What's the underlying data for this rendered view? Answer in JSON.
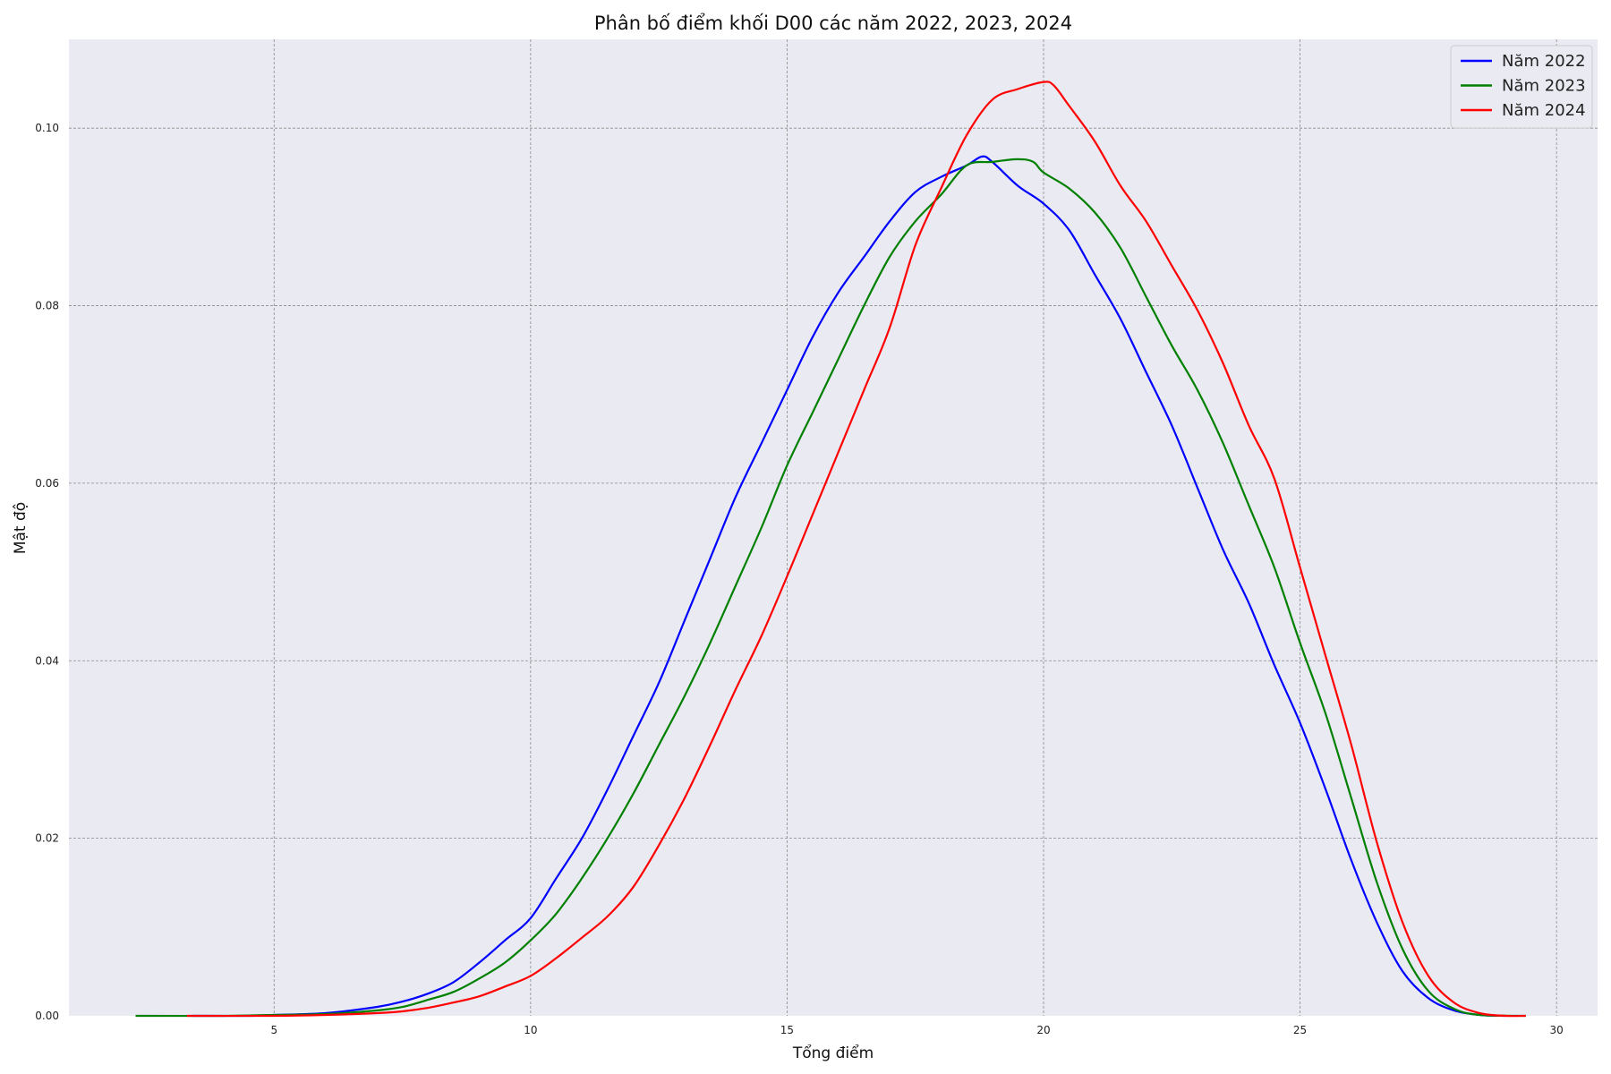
{
  "chart_data": {
    "type": "line",
    "title": "Phân bố điểm khối D00 các năm 2022, 2023, 2024",
    "xlabel": "Tổng điểm",
    "ylabel": "Mật độ",
    "xlim": [
      1.0,
      30.8
    ],
    "ylim": [
      0.0,
      0.11
    ],
    "xticks": [
      5,
      10,
      15,
      20,
      25,
      30
    ],
    "yticks": [
      0.0,
      0.02,
      0.04,
      0.06,
      0.08,
      0.1
    ],
    "xtick_labels": [
      "5",
      "10",
      "15",
      "20",
      "25",
      "30"
    ],
    "ytick_labels": [
      "0.00",
      "0.02",
      "0.04",
      "0.06",
      "0.08",
      "0.10"
    ],
    "grid": true,
    "legend_position": "top-right",
    "series": [
      {
        "name": "Năm 2022",
        "color": "#0000ff",
        "points": [
          [
            3.4,
            0.0
          ],
          [
            4.5,
            0.0
          ],
          [
            5.0,
            0.0001
          ],
          [
            6.0,
            0.0003
          ],
          [
            7.0,
            0.001
          ],
          [
            7.5,
            0.0016
          ],
          [
            8.0,
            0.0025
          ],
          [
            8.5,
            0.0038
          ],
          [
            9.0,
            0.006
          ],
          [
            9.5,
            0.0085
          ],
          [
            10.0,
            0.011
          ],
          [
            10.5,
            0.0155
          ],
          [
            11.0,
            0.02
          ],
          [
            11.5,
            0.0255
          ],
          [
            12.0,
            0.0315
          ],
          [
            12.5,
            0.0375
          ],
          [
            13.0,
            0.0445
          ],
          [
            13.5,
            0.0515
          ],
          [
            14.0,
            0.0585
          ],
          [
            14.5,
            0.0645
          ],
          [
            15.0,
            0.0705
          ],
          [
            15.5,
            0.0765
          ],
          [
            16.0,
            0.0815
          ],
          [
            16.5,
            0.0855
          ],
          [
            17.0,
            0.0895
          ],
          [
            17.5,
            0.0928
          ],
          [
            18.0,
            0.0945
          ],
          [
            18.5,
            0.0958
          ],
          [
            18.8,
            0.0968
          ],
          [
            19.0,
            0.0962
          ],
          [
            19.5,
            0.0935
          ],
          [
            20.0,
            0.0915
          ],
          [
            20.5,
            0.0885
          ],
          [
            21.0,
            0.0835
          ],
          [
            21.5,
            0.0785
          ],
          [
            22.0,
            0.0725
          ],
          [
            22.5,
            0.0665
          ],
          [
            23.0,
            0.0595
          ],
          [
            23.5,
            0.0525
          ],
          [
            24.0,
            0.0465
          ],
          [
            24.5,
            0.0395
          ],
          [
            25.0,
            0.033
          ],
          [
            25.5,
            0.0255
          ],
          [
            26.0,
            0.0175
          ],
          [
            26.5,
            0.0105
          ],
          [
            27.0,
            0.005
          ],
          [
            27.5,
            0.002
          ],
          [
            28.0,
            0.0006
          ],
          [
            28.5,
            0.0001
          ],
          [
            29.0,
            0.0
          ]
        ]
      },
      {
        "name": "Năm 2023",
        "color": "#008000",
        "points": [
          [
            2.3,
            0.0
          ],
          [
            4.0,
            0.0
          ],
          [
            5.0,
            0.0001
          ],
          [
            6.0,
            0.0002
          ],
          [
            7.0,
            0.0006
          ],
          [
            7.5,
            0.001
          ],
          [
            8.0,
            0.0018
          ],
          [
            8.5,
            0.0027
          ],
          [
            9.0,
            0.0042
          ],
          [
            9.5,
            0.006
          ],
          [
            10.0,
            0.0085
          ],
          [
            10.5,
            0.0115
          ],
          [
            11.0,
            0.0155
          ],
          [
            11.5,
            0.02
          ],
          [
            12.0,
            0.025
          ],
          [
            12.5,
            0.0305
          ],
          [
            13.0,
            0.036
          ],
          [
            13.5,
            0.042
          ],
          [
            14.0,
            0.0485
          ],
          [
            14.5,
            0.055
          ],
          [
            15.0,
            0.062
          ],
          [
            15.5,
            0.068
          ],
          [
            16.0,
            0.074
          ],
          [
            16.5,
            0.08
          ],
          [
            17.0,
            0.0855
          ],
          [
            17.5,
            0.0895
          ],
          [
            18.0,
            0.0925
          ],
          [
            18.5,
            0.0958
          ],
          [
            19.0,
            0.0962
          ],
          [
            19.5,
            0.0965
          ],
          [
            19.8,
            0.0962
          ],
          [
            20.0,
            0.095
          ],
          [
            20.5,
            0.0932
          ],
          [
            21.0,
            0.0905
          ],
          [
            21.5,
            0.0865
          ],
          [
            22.0,
            0.081
          ],
          [
            22.5,
            0.0755
          ],
          [
            23.0,
            0.0705
          ],
          [
            23.5,
            0.0645
          ],
          [
            24.0,
            0.0575
          ],
          [
            24.5,
            0.0505
          ],
          [
            25.0,
            0.042
          ],
          [
            25.5,
            0.034
          ],
          [
            26.0,
            0.0245
          ],
          [
            26.5,
            0.015
          ],
          [
            27.0,
            0.0075
          ],
          [
            27.5,
            0.0028
          ],
          [
            28.0,
            0.0008
          ],
          [
            28.5,
            0.0001
          ],
          [
            29.4,
            0.0
          ]
        ]
      },
      {
        "name": "Năm 2024",
        "color": "#ff0000",
        "points": [
          [
            3.3,
            0.0
          ],
          [
            5.0,
            0.0
          ],
          [
            6.0,
            0.0001
          ],
          [
            7.0,
            0.0003
          ],
          [
            7.5,
            0.0005
          ],
          [
            8.0,
            0.0009
          ],
          [
            8.5,
            0.0015
          ],
          [
            9.0,
            0.0022
          ],
          [
            9.5,
            0.0033
          ],
          [
            10.0,
            0.0045
          ],
          [
            10.5,
            0.0065
          ],
          [
            11.0,
            0.0088
          ],
          [
            11.5,
            0.0112
          ],
          [
            12.0,
            0.0145
          ],
          [
            12.5,
            0.0192
          ],
          [
            13.0,
            0.0245
          ],
          [
            13.5,
            0.0305
          ],
          [
            14.0,
            0.0368
          ],
          [
            14.5,
            0.0428
          ],
          [
            15.0,
            0.0495
          ],
          [
            15.5,
            0.0565
          ],
          [
            16.0,
            0.0635
          ],
          [
            16.5,
            0.0705
          ],
          [
            17.0,
            0.0775
          ],
          [
            17.5,
            0.0868
          ],
          [
            18.0,
            0.0932
          ],
          [
            18.5,
            0.0992
          ],
          [
            19.0,
            0.1032
          ],
          [
            19.5,
            0.1044
          ],
          [
            20.0,
            0.1052
          ],
          [
            20.2,
            0.1048
          ],
          [
            20.5,
            0.1025
          ],
          [
            21.0,
            0.0985
          ],
          [
            21.5,
            0.0935
          ],
          [
            22.0,
            0.0895
          ],
          [
            22.5,
            0.0845
          ],
          [
            23.0,
            0.0795
          ],
          [
            23.5,
            0.0735
          ],
          [
            24.0,
            0.0665
          ],
          [
            24.5,
            0.0605
          ],
          [
            25.0,
            0.0505
          ],
          [
            25.5,
            0.0405
          ],
          [
            26.0,
            0.0305
          ],
          [
            26.5,
            0.0195
          ],
          [
            27.0,
            0.0105
          ],
          [
            27.5,
            0.0045
          ],
          [
            28.0,
            0.0015
          ],
          [
            28.5,
            0.0003
          ],
          [
            29.0,
            0.0
          ],
          [
            29.4,
            0.0
          ]
        ]
      }
    ]
  }
}
